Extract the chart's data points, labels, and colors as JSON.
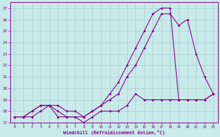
{
  "xlabel": "Windchill (Refroidissement éolien,°C)",
  "bg_color": "#c8eaea",
  "grid_color": "#a8d0d0",
  "line_color": "#880088",
  "x_ticks": [
    0,
    1,
    2,
    3,
    4,
    5,
    6,
    7,
    8,
    9,
    10,
    11,
    12,
    13,
    14,
    15,
    16,
    17,
    18,
    19,
    20,
    21,
    22,
    23
  ],
  "ylim": [
    17.0,
    27.5
  ],
  "xlim": [
    -0.5,
    23.5
  ],
  "series1_x": [
    0,
    1,
    2,
    3,
    4,
    5,
    6,
    7,
    8,
    9,
    10,
    11,
    12,
    13,
    14,
    15,
    16,
    17,
    18,
    19,
    20,
    21,
    22,
    23
  ],
  "series1_y": [
    17.5,
    17.5,
    18.0,
    18.5,
    18.5,
    18.0,
    17.5,
    17.5,
    17.5,
    18.0,
    18.5,
    19.0,
    19.5,
    21.0,
    22.0,
    23.5,
    25.0,
    26.5,
    26.5,
    25.5,
    26.0,
    23.0,
    21.0,
    19.5
  ],
  "series2_x": [
    0,
    1,
    2,
    3,
    4,
    5,
    6,
    7,
    8,
    9,
    10,
    11,
    12,
    13,
    14,
    15,
    16,
    17,
    18,
    19,
    20,
    21,
    22,
    23
  ],
  "series2_y": [
    17.5,
    17.5,
    18.0,
    18.5,
    18.5,
    18.5,
    18.0,
    18.0,
    17.5,
    18.0,
    18.5,
    19.5,
    20.5,
    22.0,
    23.5,
    25.0,
    26.5,
    27.0,
    27.0,
    19.0,
    19.0,
    19.0,
    19.0,
    19.5
  ],
  "series3_x": [
    0,
    1,
    2,
    3,
    4,
    5,
    6,
    7,
    8,
    9,
    10,
    11,
    12,
    13,
    14,
    15,
    16,
    17,
    18,
    19,
    20,
    21,
    22,
    23
  ],
  "series3_y": [
    17.5,
    17.5,
    17.5,
    18.0,
    18.5,
    17.5,
    17.5,
    17.5,
    17.0,
    17.5,
    18.0,
    18.0,
    18.0,
    18.5,
    19.5,
    19.0,
    19.0,
    19.0,
    19.0,
    19.0,
    19.0,
    19.0,
    19.0,
    19.5
  ],
  "yticks": [
    17,
    18,
    19,
    20,
    21,
    22,
    23,
    24,
    25,
    26,
    27
  ]
}
